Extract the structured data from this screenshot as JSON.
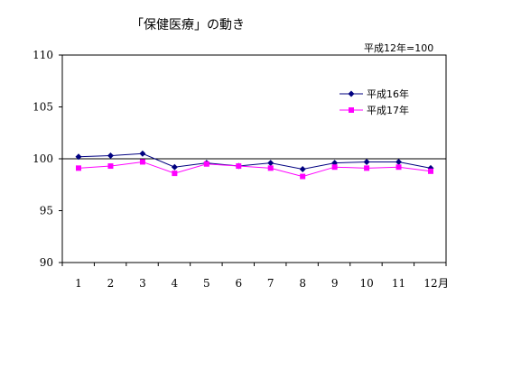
{
  "chart_data": {
    "type": "line",
    "title": "「保健医療」の動き",
    "note": "平成12年=100",
    "categories": [
      "1",
      "2",
      "3",
      "4",
      "5",
      "6",
      "7",
      "8",
      "9",
      "10",
      "11",
      "12"
    ],
    "x_unit": "月",
    "ylim": [
      90,
      110
    ],
    "yticks": [
      "110",
      "105",
      "100",
      "95",
      "90"
    ],
    "reference_line": 100,
    "grid": false,
    "legend_position": "upper-right",
    "series": [
      {
        "name": "平成16年",
        "color": "#000080",
        "marker": "diamond",
        "values": [
          100.2,
          100.3,
          100.5,
          99.2,
          99.6,
          99.3,
          99.6,
          99.0,
          99.6,
          99.7,
          99.7,
          99.1
        ]
      },
      {
        "name": "平成17年",
        "color": "#ff00ff",
        "marker": "square",
        "values": [
          99.1,
          99.3,
          99.7,
          98.6,
          99.5,
          99.3,
          99.1,
          98.3,
          99.2,
          99.1,
          99.2,
          98.8
        ]
      }
    ]
  }
}
